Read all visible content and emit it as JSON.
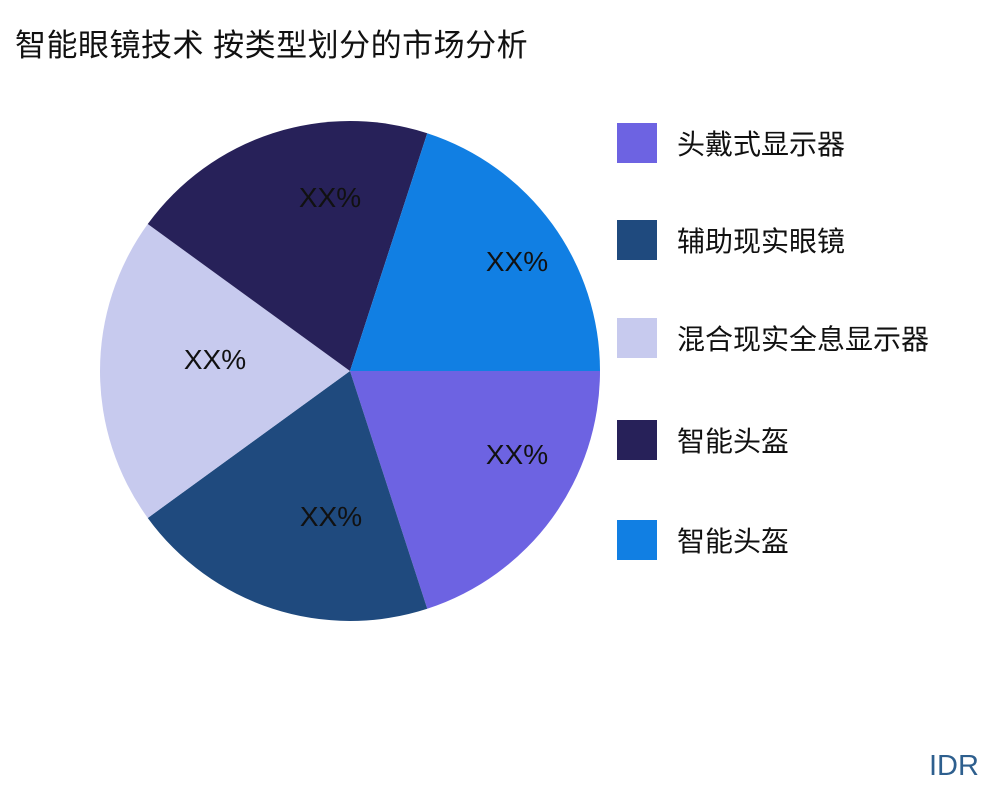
{
  "page": {
    "background": "#ffffff",
    "text_color": "#111111"
  },
  "chart_data": {
    "type": "pie",
    "title": "智能眼镜技术 按类型划分的市场分析",
    "direction": "clockwise",
    "start_angle_deg": 0,
    "legend_position": "right",
    "slice_label_placeholder": "XX%",
    "slices": [
      {
        "label": "头戴式显示器",
        "value": 20,
        "display": "XX%",
        "color": "#6D63E2"
      },
      {
        "label": "辅助现实眼镜",
        "value": 20,
        "display": "XX%",
        "color": "#1F4A7E"
      },
      {
        "label": "混合现实全息显示器",
        "value": 20,
        "display": "XX%",
        "color": "#C7CAEE"
      },
      {
        "label": "智能头盔",
        "value": 20,
        "display": "XX%",
        "color": "#272159"
      },
      {
        "label": "智能头盔",
        "value": 20,
        "display": "XX%",
        "color": "#117FE3"
      }
    ]
  },
  "watermark": {
    "text": "IDR",
    "color": "#2E5F8E"
  }
}
